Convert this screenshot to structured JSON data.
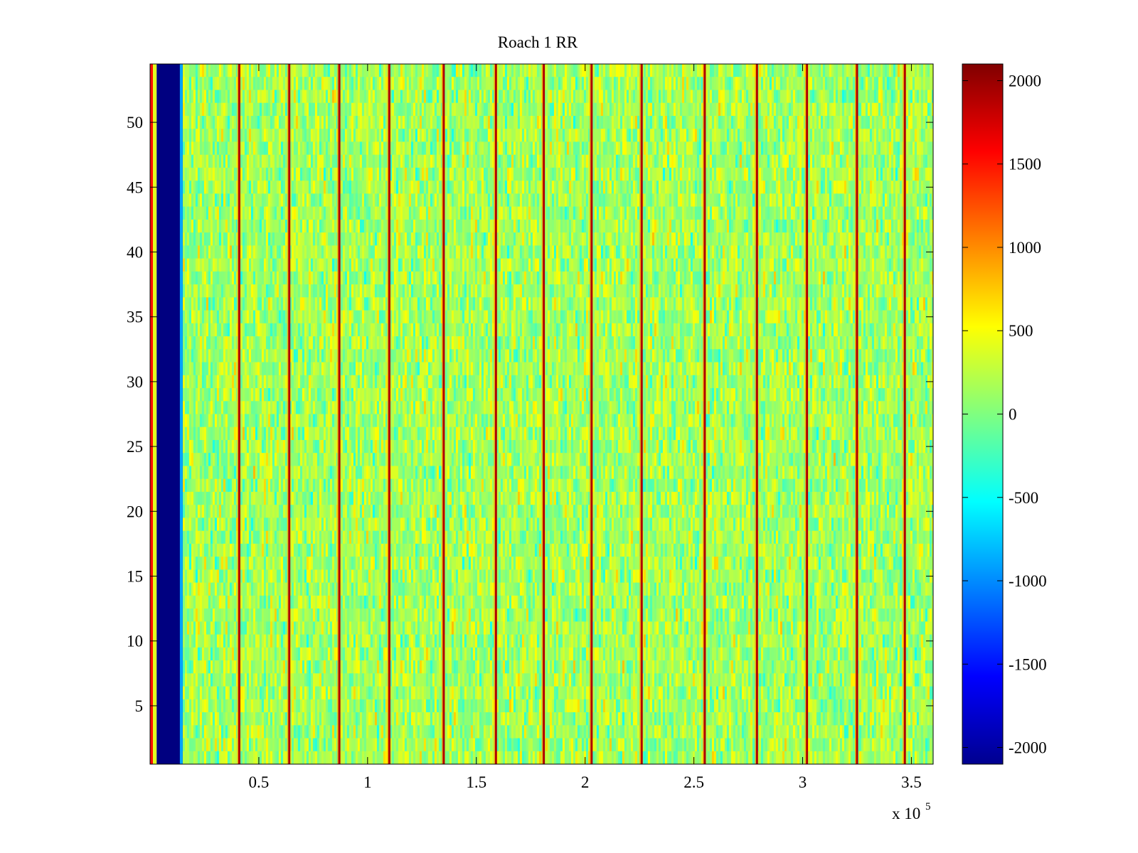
{
  "chart_data": {
    "type": "heatmap",
    "title": "Roach 1 RR",
    "xlabel": "",
    "ylabel": "",
    "x_multiplier": {
      "base": "x 10",
      "exponent": "5"
    },
    "xlim": [
      0,
      3.6
    ],
    "ylim": [
      0.5,
      54.5
    ],
    "x_ticks": [
      0.5,
      1,
      1.5,
      2,
      2.5,
      3,
      3.5
    ],
    "x_tick_labels": [
      "0.5",
      "1",
      "1.5",
      "2",
      "2.5",
      "3",
      "3.5"
    ],
    "y_ticks": [
      5,
      10,
      15,
      20,
      25,
      30,
      35,
      40,
      45,
      50
    ],
    "y_tick_labels": [
      "5",
      "10",
      "15",
      "20",
      "25",
      "30",
      "35",
      "40",
      "45",
      "50"
    ],
    "rows": 54,
    "colormap": "jet",
    "clim": [
      -2100,
      2100
    ],
    "colorbar": {
      "ticks": [
        2000,
        1500,
        1000,
        500,
        0,
        -500,
        -1000,
        -1500,
        -2000
      ],
      "tick_labels": [
        "2000",
        "1500",
        "1000",
        "500",
        "0",
        "-500",
        "-1000",
        "-1500",
        "-2000"
      ]
    },
    "background_band": {
      "x_start": 0.03,
      "x_end": 0.15,
      "value": -2100
    },
    "edge_spike": {
      "x": 0.01,
      "value": 1500
    },
    "baseline_mean_value": 150,
    "baseline_spread": 350,
    "spike_lines_x": [
      0.41,
      0.64,
      0.87,
      1.1,
      1.35,
      1.59,
      1.81,
      2.03,
      2.26,
      2.55,
      2.79,
      3.02,
      3.25,
      3.47
    ],
    "spike_value": 1900
  }
}
